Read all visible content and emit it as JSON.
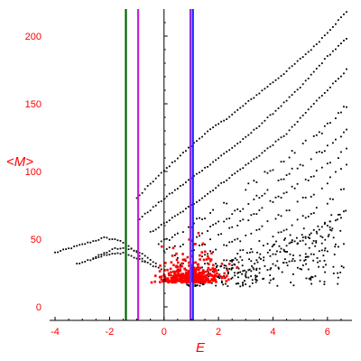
{
  "chart_data": {
    "type": "scatter",
    "title": "",
    "xlabel": "E",
    "ylabel": "<M>",
    "xlim": [
      -4.2,
      6.9
    ],
    "ylim": [
      -10,
      220
    ],
    "x_ticks": [
      -4,
      -2,
      0,
      2,
      4,
      6
    ],
    "y_ticks": [
      0,
      50,
      100,
      150,
      200
    ],
    "grid": false,
    "legend": "none",
    "colors": {
      "axis_text": "#ff0000",
      "axis_line": "#000000",
      "black_points": "#000000",
      "red_points": "#ff0000",
      "line_green": "#006400",
      "line_magenta": "#d020d0",
      "line_purple": "#8a2be2",
      "line_blue": "#2020ff"
    },
    "vertical_lines": [
      {
        "x": -1.4,
        "color": "#006400"
      },
      {
        "x": -0.95,
        "color": "#d020d0"
      },
      {
        "x": 0.97,
        "color": "#8a2be2"
      },
      {
        "x": 1.06,
        "color": "#2020ff"
      }
    ],
    "series": [
      {
        "color": "#000000",
        "type": "scatter",
        "bands": [
          {
            "x": [
              -4.0,
              -3.0,
              -2.2,
              -1.6,
              -1.0,
              -0.6
            ],
            "y": [
              40,
              46,
              51,
              49,
              40,
              32
            ]
          },
          {
            "x": [
              -2.6,
              -1.8,
              -1.2,
              -0.7,
              -0.2
            ],
            "y": [
              36,
              43,
              43,
              38,
              30
            ]
          },
          {
            "x": [
              -3.2,
              -2.2,
              -1.5,
              -0.8,
              0.0
            ],
            "y": [
              32,
              38,
              40,
              34,
              27
            ]
          },
          {
            "x": [
              -1.0,
              -0.5,
              0.5,
              1.5,
              2.5,
              3.5,
              4.5,
              5.5,
              6.7
            ],
            "y": [
              80,
              91,
              110,
              128,
              142,
              158,
              174,
              192,
              218
            ]
          },
          {
            "x": [
              -0.9,
              0.0,
              1.0,
              2.0,
              3.0,
              4.0,
              5.0,
              6.0,
              6.7
            ],
            "y": [
              65,
              80,
              95,
              110,
              125,
              143,
              162,
              185,
              198
            ]
          },
          {
            "x": [
              -0.5,
              0.5,
              1.5,
              2.5,
              3.5,
              4.5,
              5.5,
              6.7
            ],
            "y": [
              55,
              68,
              82,
              97,
              112,
              128,
              150,
              175
            ]
          },
          {
            "x": [
              -0.2,
              0.8,
              1.8,
              2.8,
              3.8,
              4.8,
              5.8,
              6.7
            ],
            "y": [
              46,
              58,
              71,
              85,
              100,
              115,
              130,
              148
            ]
          },
          {
            "x": [
              0.0,
              1.0,
              2.0,
              3.0,
              4.0,
              5.0,
              6.0,
              6.7
            ],
            "y": [
              40,
              50,
              62,
              75,
              90,
              105,
              118,
              130
            ]
          },
          {
            "x": [
              0.3,
              1.3,
              2.3,
              3.3,
              4.3,
              5.3,
              6.3,
              6.7
            ],
            "y": [
              35,
              45,
              55,
              68,
              82,
              95,
              108,
              118
            ]
          },
          {
            "x": [
              0.6,
              1.6,
              2.6,
              3.6,
              4.6,
              5.6,
              6.7
            ],
            "y": [
              30,
              40,
              48,
              60,
              72,
              86,
              105
            ]
          },
          {
            "x": [
              1.0,
              2.0,
              3.0,
              4.0,
              5.0,
              6.0,
              6.7
            ],
            "y": [
              28,
              34,
              42,
              52,
              64,
              77,
              88
            ]
          },
          {
            "x": [
              1.5,
              2.5,
              3.5,
              4.5,
              5.5,
              6.7
            ],
            "y": [
              26,
              30,
              36,
              44,
              55,
              70
            ]
          },
          {
            "x": [
              2.0,
              3.0,
              4.0,
              5.0,
              6.0,
              6.7
            ],
            "y": [
              22,
              26,
              30,
              35,
              42,
              48
            ]
          }
        ]
      },
      {
        "color": "#ff0000",
        "type": "scatter",
        "center": [
          1.0,
          18
        ],
        "spread": [
          0.55,
          6
        ],
        "x_range": [
          -0.5,
          2.7
        ],
        "y_range": [
          5,
          55
        ]
      }
    ]
  }
}
